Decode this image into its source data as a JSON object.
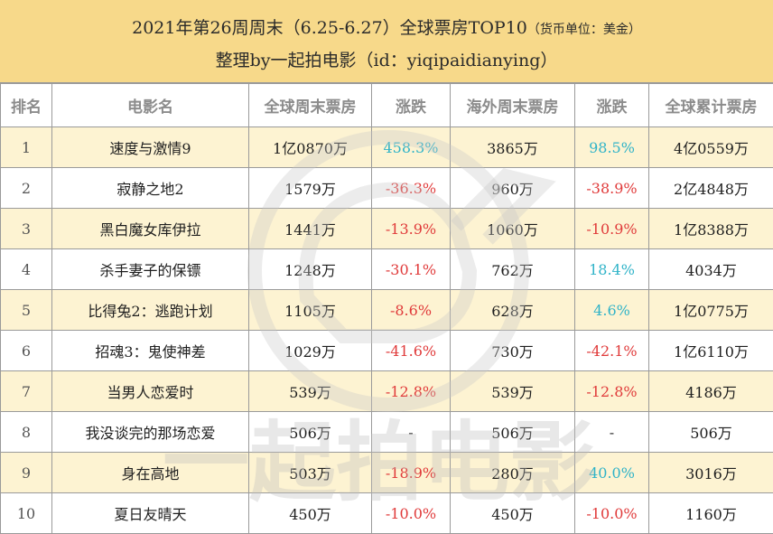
{
  "header": {
    "title": "2021年第26周周末（6.25-6.27）全球票房TOP10",
    "unit": "（货币单位：美金）",
    "subtitle": "整理by一起拍电影（id：yiqipaidianying）"
  },
  "columns": [
    "排名",
    "电影名",
    "全球周末票房",
    "涨跌",
    "海外周末票房",
    "涨跌",
    "全球累计票房"
  ],
  "rows": [
    {
      "rank": "1",
      "title": "速度与激情9",
      "global_weekend": "1亿0870万",
      "global_change": "458.3%",
      "global_trend": "pos",
      "overseas_weekend": "3865万",
      "overseas_change": "98.5%",
      "overseas_trend": "pos",
      "cumulative": "4亿0559万"
    },
    {
      "rank": "2",
      "title": "寂静之地2",
      "global_weekend": "1579万",
      "global_change": "-36.3%",
      "global_trend": "neg",
      "overseas_weekend": "960万",
      "overseas_change": "-38.9%",
      "overseas_trend": "neg",
      "cumulative": "2亿4848万"
    },
    {
      "rank": "3",
      "title": "黑白魔女库伊拉",
      "global_weekend": "1441万",
      "global_change": "-13.9%",
      "global_trend": "neg",
      "overseas_weekend": "1060万",
      "overseas_change": "-10.9%",
      "overseas_trend": "neg",
      "cumulative": "1亿8388万"
    },
    {
      "rank": "4",
      "title": "杀手妻子的保镖",
      "global_weekend": "1248万",
      "global_change": "-30.1%",
      "global_trend": "neg",
      "overseas_weekend": "762万",
      "overseas_change": "18.4%",
      "overseas_trend": "pos",
      "cumulative": "4034万"
    },
    {
      "rank": "5",
      "title": "比得兔2：逃跑计划",
      "global_weekend": "1105万",
      "global_change": "-8.6%",
      "global_trend": "neg",
      "overseas_weekend": "628万",
      "overseas_change": "4.6%",
      "overseas_trend": "pos",
      "cumulative": "1亿0775万"
    },
    {
      "rank": "6",
      "title": "招魂3：鬼使神差",
      "global_weekend": "1029万",
      "global_change": "-41.6%",
      "global_trend": "neg",
      "overseas_weekend": "730万",
      "overseas_change": "-42.1%",
      "overseas_trend": "neg",
      "cumulative": "1亿6110万"
    },
    {
      "rank": "7",
      "title": "当男人恋爱时",
      "global_weekend": "539万",
      "global_change": "-12.8%",
      "global_trend": "neg",
      "overseas_weekend": "539万",
      "overseas_change": "-12.8%",
      "overseas_trend": "neg",
      "cumulative": "4186万"
    },
    {
      "rank": "8",
      "title": "我没谈完的那场恋爱",
      "global_weekend": "506万",
      "global_change": "-",
      "global_trend": "none",
      "overseas_weekend": "506万",
      "overseas_change": "-",
      "overseas_trend": "none",
      "cumulative": "506万"
    },
    {
      "rank": "9",
      "title": "身在高地",
      "global_weekend": "503万",
      "global_change": "-18.9%",
      "global_trend": "neg",
      "overseas_weekend": "280万",
      "overseas_change": "40.0%",
      "overseas_trend": "pos",
      "cumulative": "3016万"
    },
    {
      "rank": "10",
      "title": "夏日友晴天",
      "global_weekend": "450万",
      "global_change": "-10.0%",
      "global_trend": "neg",
      "overseas_weekend": "450万",
      "overseas_change": "-10.0%",
      "overseas_trend": "neg",
      "cumulative": "1160万"
    }
  ],
  "watermark": "一起拍电影",
  "colors": {
    "header_bg": "#f7d98a",
    "alt_row_bg": "#fdf3d2",
    "negative": "#e03a3a",
    "positive": "#2fb3c8",
    "header_text": "#8c8c8c"
  }
}
